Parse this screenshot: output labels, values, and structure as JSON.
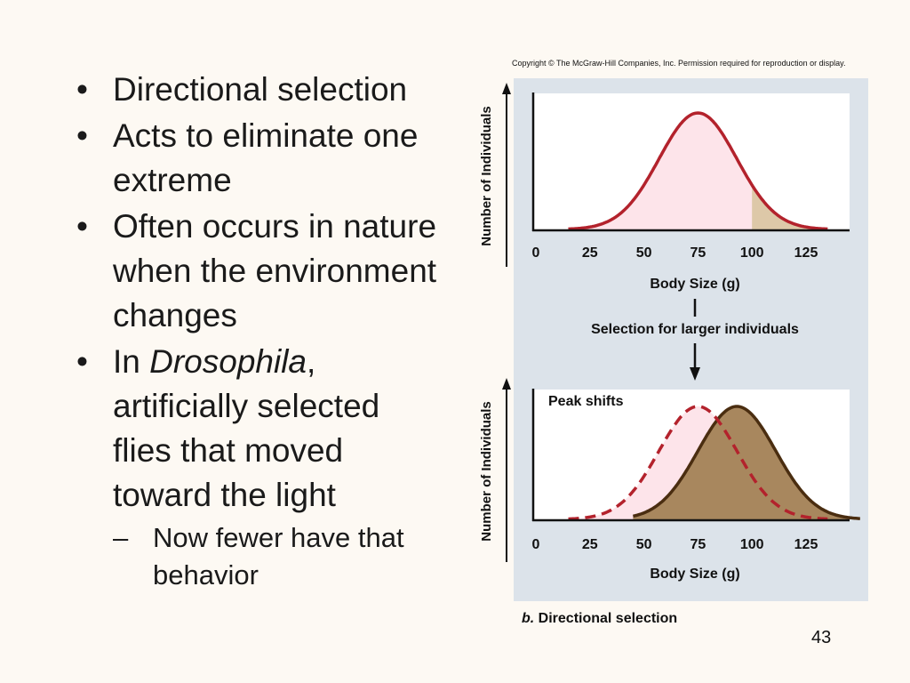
{
  "slide": {
    "bullets": [
      {
        "text": "Directional selection"
      },
      {
        "text": "Acts to eliminate one extreme"
      },
      {
        "text": "Often occurs in nature when the environment changes"
      },
      {
        "prefix": "In ",
        "italic": "Drosophila",
        "suffix": ", artificially selected flies that moved toward the light",
        "sub": "Now fewer have that behavior"
      }
    ],
    "page_number": "43"
  },
  "figure": {
    "copyright": "Copyright © The McGraw-Hill Companies, Inc. Permission required for reproduction or display.",
    "caption_bold_italic": "b.",
    "caption_rest": " Directional selection",
    "selection_label": "Selection for larger individuals",
    "peak_label": "Peak shifts",
    "top_plot": {
      "ylabel": "Number of Individuals",
      "xlabel": "Body Size (g)",
      "ticks": [
        "0",
        "25",
        "50",
        "75",
        "100",
        "125"
      ],
      "curve_mean": 75,
      "shaded_from": 100
    },
    "bottom_plot": {
      "ylabel": "Number of Individuals",
      "xlabel": "Body Size (g)",
      "ticks": [
        "0",
        "25",
        "50",
        "75",
        "100",
        "125"
      ],
      "original_mean": 75,
      "shifted_mean": 100
    },
    "colors": {
      "panel_bg": "#dce3ea",
      "plot_bg": "#ffffff",
      "original_curve": "#b3222c",
      "original_fill": "#fde4ea",
      "selected_fill": "#ddc8a8",
      "shifted_curve": "#4a2d10",
      "shifted_fill": "#a8875e"
    }
  }
}
